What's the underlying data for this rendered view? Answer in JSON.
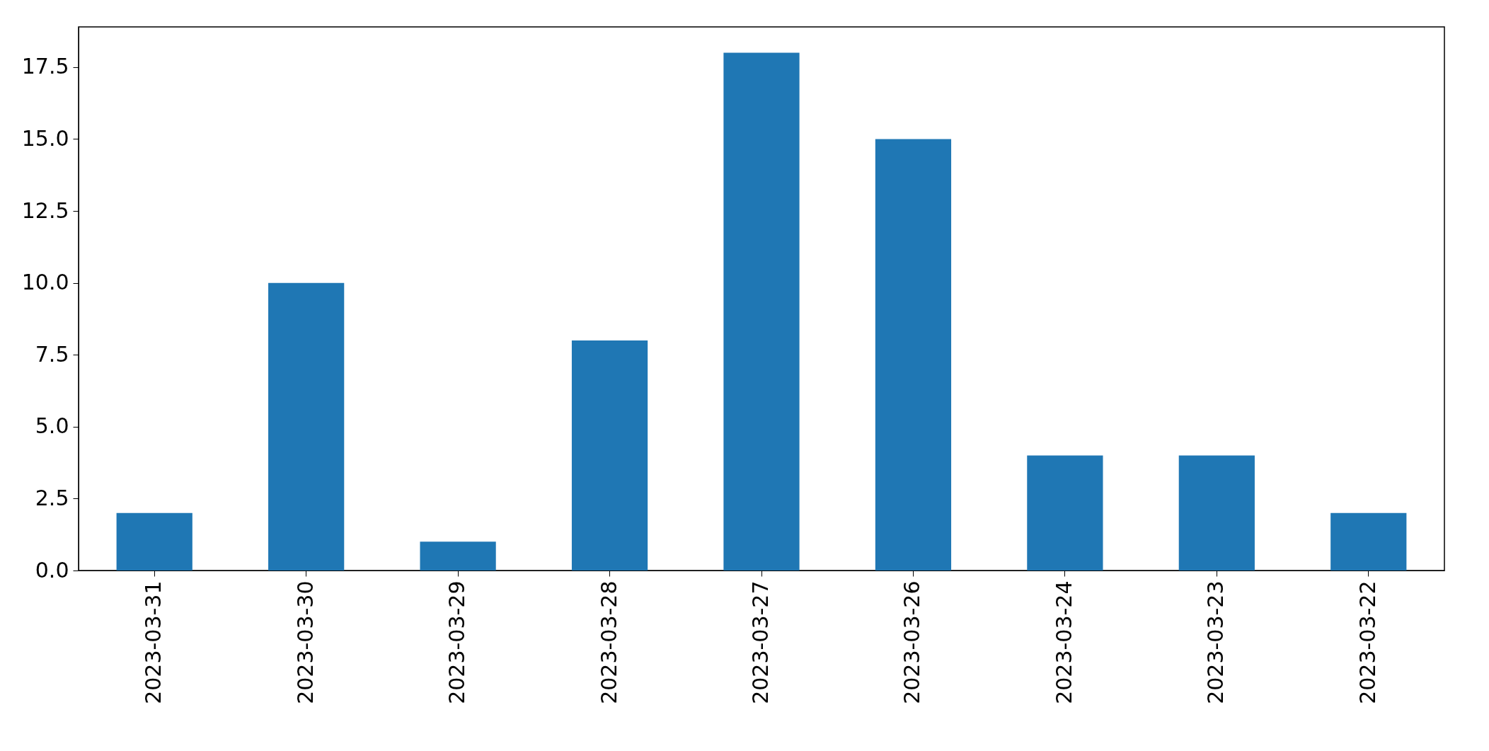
{
  "chart_data": {
    "type": "bar",
    "categories": [
      "2023-03-31",
      "2023-03-30",
      "2023-03-29",
      "2023-03-28",
      "2023-03-27",
      "2023-03-26",
      "2023-03-24",
      "2023-03-23",
      "2023-03-22"
    ],
    "values": [
      2,
      10,
      1,
      8,
      18,
      15,
      4,
      4,
      2
    ],
    "color": "#1f77b4",
    "ylim": [
      0,
      18.9
    ],
    "yticks": [
      {
        "value": 0,
        "label": "0.0"
      },
      2.5,
      {
        "value": 5,
        "label": "5.0"
      },
      7.5,
      {
        "value": 10,
        "label": "10.0"
      },
      12.5,
      {
        "value": 15,
        "label": "15.0"
      },
      17.5
    ],
    "grid": false
  }
}
